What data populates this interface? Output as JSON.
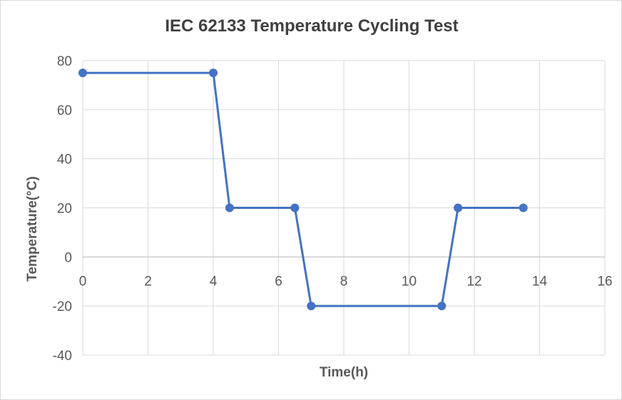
{
  "chart_data": {
    "type": "line",
    "title": "IEC 62133 Temperature Cycling Test",
    "xlabel": "Time(h)",
    "ylabel": "Temperature(°C)",
    "xlim": [
      0,
      16
    ],
    "ylim": [
      -40,
      80
    ],
    "xticks": [
      0,
      2,
      4,
      6,
      8,
      10,
      12,
      14,
      16
    ],
    "yticks": [
      -40,
      -20,
      0,
      20,
      40,
      60,
      80
    ],
    "grid": true,
    "legend": "none",
    "series": [
      {
        "name": "Temperature",
        "color": "#4472c4",
        "marker": "circle",
        "x": [
          0,
          4,
          4.5,
          6.5,
          7,
          11,
          11.5,
          13.5
        ],
        "y": [
          75,
          75,
          20,
          20,
          -20,
          -20,
          20,
          20
        ]
      }
    ]
  }
}
